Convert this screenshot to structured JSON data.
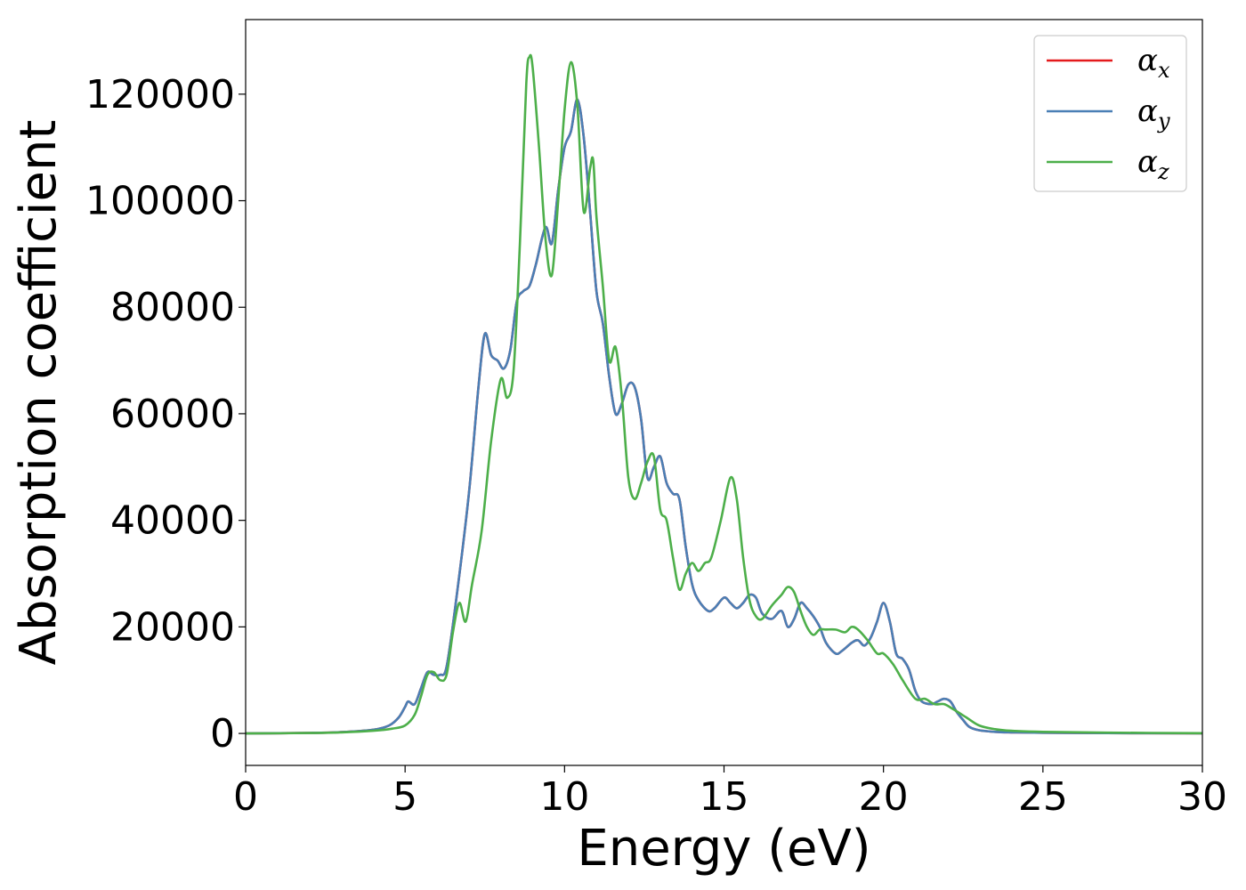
{
  "chart_data": {
    "type": "line",
    "title": "",
    "xlabel": "Energy (eV)",
    "ylabel": "Absorption coefficient",
    "xlim": [
      0,
      30
    ],
    "ylim": [
      -6000,
      134000
    ],
    "xticks": [
      0,
      5,
      10,
      15,
      20,
      25,
      30
    ],
    "yticks": [
      0,
      20000,
      40000,
      60000,
      80000,
      100000,
      120000
    ],
    "xtick_labels": [
      "0",
      "5",
      "10",
      "15",
      "20",
      "25",
      "30"
    ],
    "ytick_labels": [
      "0",
      "20000",
      "40000",
      "60000",
      "80000",
      "100000",
      "120000"
    ],
    "grid": false,
    "legend_position": "top-right",
    "series": [
      {
        "name": "α_x",
        "legend_base": "α",
        "legend_sub": "x",
        "color": "#e41a1c",
        "x": [
          0,
          2,
          3,
          4,
          4.5,
          4.8,
          5.0,
          5.1,
          5.3,
          5.5,
          5.7,
          5.9,
          6.1,
          6.3,
          6.6,
          7.0,
          7.3,
          7.5,
          7.7,
          7.9,
          8.1,
          8.3,
          8.5,
          8.7,
          8.9,
          9.1,
          9.4,
          9.6,
          9.8,
          10.0,
          10.2,
          10.4,
          10.6,
          10.8,
          11.0,
          11.2,
          11.4,
          11.6,
          11.8,
          12.0,
          12.2,
          12.4,
          12.6,
          12.8,
          13.0,
          13.2,
          13.4,
          13.6,
          13.8,
          14.0,
          14.2,
          14.5,
          14.7,
          15.0,
          15.2,
          15.4,
          15.6,
          15.8,
          16.0,
          16.2,
          16.5,
          16.8,
          17.0,
          17.2,
          17.4,
          17.6,
          17.8,
          18.0,
          18.2,
          18.5,
          18.7,
          19.0,
          19.2,
          19.4,
          19.6,
          19.8,
          20.0,
          20.2,
          20.4,
          20.6,
          20.8,
          21.0,
          21.2,
          21.5,
          21.7,
          21.9,
          22.1,
          22.3,
          22.5,
          22.7,
          23.0,
          23.5,
          24.0,
          25,
          27,
          30
        ],
        "y": [
          0,
          100,
          250,
          700,
          1500,
          3000,
          5000,
          6000,
          5500,
          8500,
          11500,
          11000,
          11000,
          12500,
          25000,
          45000,
          65000,
          75000,
          71000,
          70000,
          68500,
          72000,
          81000,
          83000,
          84000,
          88000,
          95000,
          92000,
          102000,
          110000,
          113000,
          119000,
          112000,
          98000,
          83000,
          77000,
          67000,
          60000,
          62000,
          65500,
          65000,
          59000,
          48000,
          50000,
          52000,
          47000,
          45000,
          44000,
          35000,
          28000,
          25000,
          23000,
          23500,
          25500,
          24500,
          23500,
          24500,
          26000,
          25500,
          22500,
          21500,
          23000,
          20000,
          21500,
          24500,
          23500,
          22000,
          20000,
          17000,
          15000,
          15500,
          17000,
          17500,
          16500,
          18000,
          21000,
          24500,
          21000,
          15000,
          14000,
          12000,
          8000,
          6000,
          5500,
          6000,
          6500,
          6000,
          4000,
          2500,
          1200,
          600,
          300,
          200,
          120,
          60,
          30
        ]
      },
      {
        "name": "α_y",
        "legend_base": "α",
        "legend_sub": "y",
        "color": "#4a7fb5",
        "x": [
          0,
          2,
          3,
          4,
          4.5,
          4.8,
          5.0,
          5.1,
          5.3,
          5.5,
          5.7,
          5.9,
          6.1,
          6.3,
          6.6,
          7.0,
          7.3,
          7.5,
          7.7,
          7.9,
          8.1,
          8.3,
          8.5,
          8.7,
          8.9,
          9.1,
          9.4,
          9.6,
          9.8,
          10.0,
          10.2,
          10.4,
          10.6,
          10.8,
          11.0,
          11.2,
          11.4,
          11.6,
          11.8,
          12.0,
          12.2,
          12.4,
          12.6,
          12.8,
          13.0,
          13.2,
          13.4,
          13.6,
          13.8,
          14.0,
          14.2,
          14.5,
          14.7,
          15.0,
          15.2,
          15.4,
          15.6,
          15.8,
          16.0,
          16.2,
          16.5,
          16.8,
          17.0,
          17.2,
          17.4,
          17.6,
          17.8,
          18.0,
          18.2,
          18.5,
          18.7,
          19.0,
          19.2,
          19.4,
          19.6,
          19.8,
          20.0,
          20.2,
          20.4,
          20.6,
          20.8,
          21.0,
          21.2,
          21.5,
          21.7,
          21.9,
          22.1,
          22.3,
          22.5,
          22.7,
          23.0,
          23.5,
          24.0,
          25,
          27,
          30
        ],
        "y": [
          0,
          100,
          250,
          700,
          1500,
          3000,
          5000,
          6000,
          5500,
          8500,
          11500,
          11000,
          11000,
          12500,
          25000,
          45000,
          65000,
          75000,
          71000,
          70000,
          68500,
          72000,
          81000,
          83000,
          84000,
          88000,
          95000,
          92000,
          102000,
          110000,
          113000,
          119000,
          112000,
          98000,
          83000,
          77000,
          67000,
          60000,
          62000,
          65500,
          65000,
          59000,
          48000,
          50000,
          52000,
          47000,
          45000,
          44000,
          35000,
          28000,
          25000,
          23000,
          23500,
          25500,
          24500,
          23500,
          24500,
          26000,
          25500,
          22500,
          21500,
          23000,
          20000,
          21500,
          24500,
          23500,
          22000,
          20000,
          17000,
          15000,
          15500,
          17000,
          17500,
          16500,
          18000,
          21000,
          24500,
          21000,
          15000,
          14000,
          12000,
          8000,
          6000,
          5500,
          6000,
          6500,
          6000,
          4000,
          2500,
          1200,
          600,
          300,
          200,
          120,
          60,
          30
        ]
      },
      {
        "name": "α_z",
        "legend_base": "α",
        "legend_sub": "z",
        "color": "#4daf4a",
        "x": [
          0,
          2,
          3,
          4,
          4.6,
          5.0,
          5.3,
          5.5,
          5.7,
          5.9,
          6.1,
          6.3,
          6.5,
          6.7,
          6.9,
          7.1,
          7.4,
          7.7,
          8.0,
          8.2,
          8.4,
          8.6,
          8.8,
          8.9,
          9.0,
          9.2,
          9.4,
          9.6,
          9.8,
          10.0,
          10.2,
          10.4,
          10.6,
          10.8,
          10.9,
          11.0,
          11.2,
          11.4,
          11.6,
          11.8,
          12.0,
          12.2,
          12.4,
          12.6,
          12.8,
          13.0,
          13.2,
          13.4,
          13.6,
          13.8,
          14.0,
          14.2,
          14.4,
          14.6,
          14.9,
          15.2,
          15.4,
          15.6,
          15.8,
          16.0,
          16.2,
          16.5,
          16.8,
          17.0,
          17.2,
          17.4,
          17.6,
          17.8,
          18.0,
          18.2,
          18.5,
          18.8,
          19.0,
          19.2,
          19.5,
          19.8,
          20.0,
          20.3,
          20.6,
          21.0,
          21.3,
          21.6,
          21.9,
          22.2,
          22.6,
          23.0,
          23.5,
          24.0,
          25,
          27,
          30
        ],
        "y": [
          0,
          80,
          200,
          500,
          900,
          1500,
          3500,
          7000,
          11000,
          11500,
          10000,
          11000,
          19000,
          24500,
          21000,
          28000,
          38000,
          55000,
          66500,
          63000,
          68000,
          92000,
          122000,
          127000,
          125000,
          110000,
          93000,
          86000,
          100000,
          117000,
          126000,
          118000,
          98000,
          106000,
          107500,
          97000,
          84000,
          70000,
          72500,
          63000,
          48000,
          44000,
          47000,
          51000,
          52000,
          42000,
          40000,
          33000,
          27000,
          30000,
          32000,
          30500,
          32000,
          33000,
          40000,
          48000,
          44000,
          33000,
          25000,
          22000,
          21500,
          24000,
          26000,
          27500,
          26500,
          23000,
          20000,
          18500,
          19500,
          19500,
          19500,
          19000,
          20000,
          19500,
          17500,
          15000,
          15000,
          13000,
          10000,
          6500,
          6500,
          5500,
          5500,
          4500,
          3000,
          1500,
          800,
          500,
          300,
          150,
          50
        ]
      }
    ]
  }
}
